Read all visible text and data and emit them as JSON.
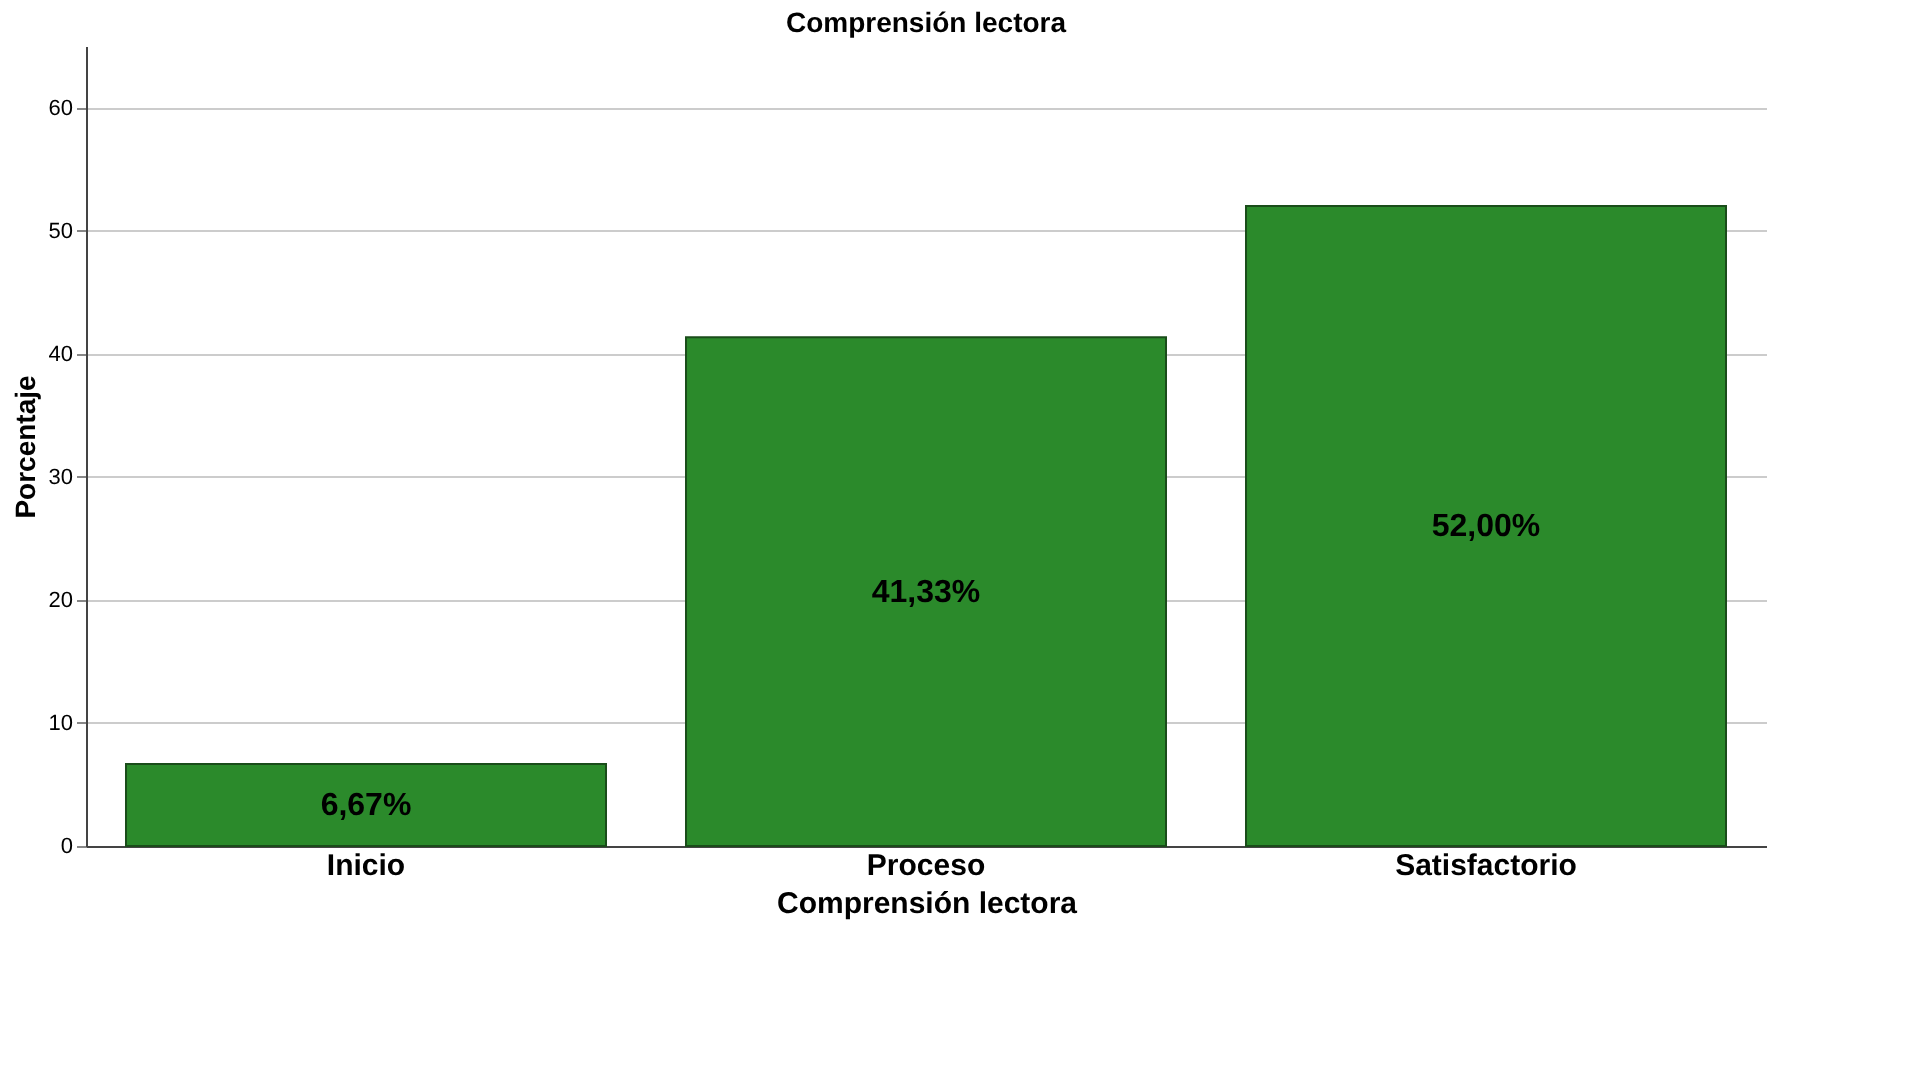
{
  "chart_data": {
    "type": "bar",
    "title": "Comprensión lectora",
    "xlabel": "Comprensión lectora",
    "ylabel": "Porcentaje",
    "categories": [
      "Inicio",
      "Proceso",
      "Satisfactorio"
    ],
    "values": [
      6.67,
      41.33,
      52.0
    ],
    "value_labels": [
      "6,67%",
      "41,33%",
      "52,00%"
    ],
    "color": "#2b8a2b",
    "ylim": [
      0,
      65
    ],
    "yticks": [
      0,
      10,
      20,
      30,
      40,
      50,
      60
    ],
    "grid": "y"
  }
}
